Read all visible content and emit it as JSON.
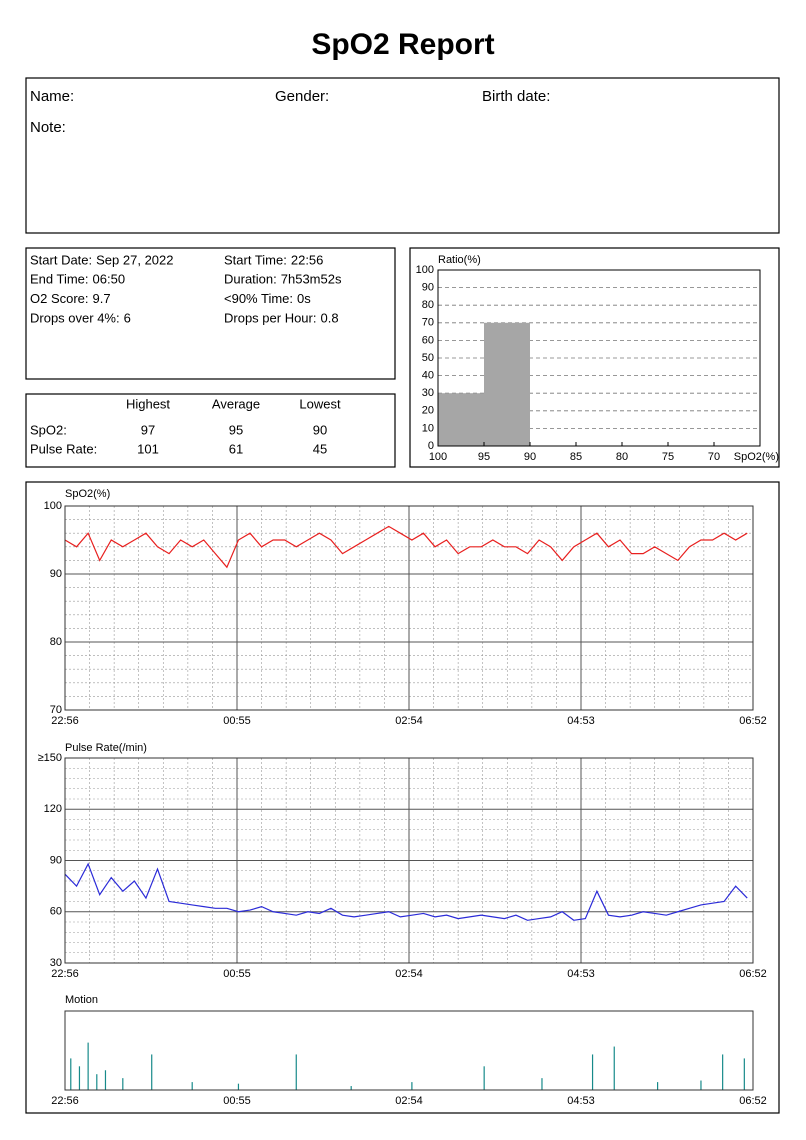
{
  "header": {
    "title": "SpO2 Report"
  },
  "patient": {
    "name": "Name:",
    "gender": "Gender:",
    "birth_date": "Birth date:",
    "note": "Note:"
  },
  "summary": [
    {
      "label": "Start Date:",
      "value": "Sep 27, 2022"
    },
    {
      "label": "Start Time:",
      "value": "22:56"
    },
    {
      "label": "End Time:",
      "value": "06:50"
    },
    {
      "label": "Duration:",
      "value": "7h53m52s"
    },
    {
      "label": "O2 Score:",
      "value": "9.7"
    },
    {
      "label": "<90% Time:",
      "value": "0s"
    },
    {
      "label": "Drops over 4%:",
      "value": "6"
    },
    {
      "label": "Drops per Hour:",
      "value": "0.8"
    }
  ],
  "stats": {
    "columns": [
      "Highest",
      "Average",
      "Lowest"
    ],
    "rows": [
      {
        "label": "SpO2:",
        "values": [
          97,
          95,
          90
        ]
      },
      {
        "label": "Pulse Rate:",
        "values": [
          101,
          61,
          45
        ]
      }
    ]
  },
  "chart_data": [
    {
      "type": "line",
      "title": "SpO2(%)",
      "grid": true,
      "x": [
        0,
        8,
        16,
        24,
        32,
        40,
        48,
        56,
        64,
        72,
        80,
        88,
        96,
        104,
        112,
        120,
        128,
        136,
        144,
        152,
        160,
        168,
        176,
        184,
        192,
        200,
        208,
        216,
        224,
        232,
        240,
        248,
        256,
        264,
        272,
        280,
        288,
        296,
        304,
        312,
        320,
        328,
        336,
        344,
        352,
        360,
        368,
        376,
        384,
        392,
        400,
        408,
        416,
        424,
        432,
        440,
        448,
        456,
        464,
        472
      ],
      "series": [
        {
          "name": "SpO2",
          "color": "#e8201f",
          "values": [
            95,
            94,
            96,
            92,
            95,
            94,
            95,
            96,
            94,
            93,
            95,
            94,
            95,
            93,
            91,
            95,
            96,
            94,
            95,
            95,
            94,
            95,
            96,
            95,
            93,
            94,
            95,
            96,
            97,
            96,
            95,
            96,
            94,
            95,
            93,
            94,
            94,
            95,
            94,
            94,
            93,
            95,
            94,
            92,
            94,
            95,
            96,
            94,
            95,
            93,
            93,
            94,
            93,
            92,
            94,
            95,
            95,
            96,
            95,
            96
          ]
        }
      ],
      "xlim": [
        0,
        476
      ],
      "xticks": [
        {
          "value": 0,
          "label": "22:56"
        },
        {
          "value": 119,
          "label": "00:55"
        },
        {
          "value": 238,
          "label": "02:54"
        },
        {
          "value": 357,
          "label": "04:53"
        },
        {
          "value": 476,
          "label": "06:52"
        }
      ],
      "ylim": [
        70,
        100
      ],
      "yticks": [
        70,
        80,
        90,
        100
      ]
    },
    {
      "type": "line",
      "title": "Pulse Rate(/min)",
      "grid": true,
      "x": [
        0,
        8,
        16,
        24,
        32,
        40,
        48,
        56,
        64,
        72,
        80,
        88,
        96,
        104,
        112,
        120,
        128,
        136,
        144,
        152,
        160,
        168,
        176,
        184,
        192,
        200,
        208,
        216,
        224,
        232,
        240,
        248,
        256,
        264,
        272,
        280,
        288,
        296,
        304,
        312,
        320,
        328,
        336,
        344,
        352,
        360,
        368,
        376,
        384,
        392,
        400,
        408,
        416,
        424,
        432,
        440,
        448,
        456,
        464,
        472
      ],
      "series": [
        {
          "name": "Pulse Rate",
          "color": "#2b2bd8",
          "values": [
            82,
            75,
            88,
            70,
            80,
            72,
            78,
            68,
            85,
            66,
            65,
            64,
            63,
            62,
            62,
            60,
            61,
            63,
            60,
            59,
            58,
            60,
            59,
            62,
            58,
            57,
            58,
            59,
            60,
            57,
            58,
            59,
            57,
            58,
            56,
            57,
            58,
            57,
            56,
            58,
            55,
            56,
            57,
            60,
            55,
            56,
            72,
            58,
            57,
            58,
            60,
            59,
            58,
            60,
            62,
            64,
            65,
            66,
            75,
            68
          ]
        }
      ],
      "xlim": [
        0,
        476
      ],
      "xticks": [
        {
          "value": 0,
          "label": "22:56"
        },
        {
          "value": 119,
          "label": "00:55"
        },
        {
          "value": 238,
          "label": "02:54"
        },
        {
          "value": 357,
          "label": "04:53"
        },
        {
          "value": 476,
          "label": "06:52"
        }
      ],
      "ylim": [
        30,
        150
      ],
      "yticks": [
        30,
        60,
        90,
        120,
        {
          "value": 150,
          "label": "≥150"
        }
      ]
    },
    {
      "type": "bar",
      "title": "Motion",
      "grid": false,
      "x": [
        4,
        10,
        16,
        22,
        28,
        40,
        60,
        88,
        120,
        160,
        198,
        240,
        290,
        330,
        365,
        380,
        410,
        440,
        455,
        470
      ],
      "series": [
        {
          "name": "Motion",
          "color": "#178a8a",
          "values": [
            40,
            30,
            60,
            20,
            25,
            15,
            45,
            10,
            8,
            45,
            5,
            10,
            30,
            15,
            45,
            55,
            10,
            12,
            45,
            40
          ]
        }
      ],
      "xlim": [
        0,
        476
      ],
      "xticks": [
        {
          "value": 0,
          "label": "22:56"
        },
        {
          "value": 119,
          "label": "00:55"
        },
        {
          "value": 238,
          "label": "02:54"
        },
        {
          "value": 357,
          "label": "04:53"
        },
        {
          "value": 476,
          "label": "06:52"
        }
      ],
      "ylim": [
        0,
        100
      ]
    },
    {
      "type": "histogram",
      "y_label": "Ratio(%)",
      "x_label": "SpO2(%)",
      "grid": true,
      "color": "#a6a6a6",
      "bins": [
        100,
        95,
        90
      ],
      "values": [
        30,
        70
      ],
      "xlim": [
        100,
        65
      ],
      "xticks": [
        100,
        95,
        90,
        85,
        80,
        75,
        70
      ],
      "ylim": [
        0,
        100
      ],
      "yticks": [
        0,
        10,
        20,
        30,
        40,
        50,
        60,
        70,
        80,
        90,
        100
      ]
    }
  ]
}
